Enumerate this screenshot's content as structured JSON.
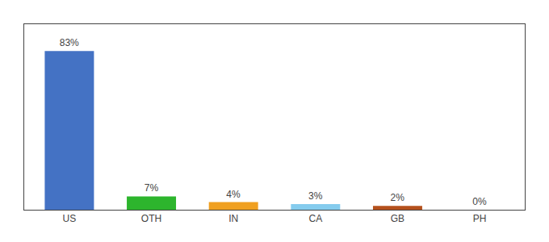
{
  "chart_data": {
    "type": "bar",
    "categories": [
      "US",
      "OTH",
      "IN",
      "CA",
      "GB",
      "PH"
    ],
    "values": [
      83,
      7,
      4,
      3,
      2,
      0
    ],
    "value_labels": [
      "83%",
      "7%",
      "4%",
      "3%",
      "2%",
      "0%"
    ],
    "colors": [
      "#4472c4",
      "#2db52d",
      "#f0a020",
      "#85ccee",
      "#b5511c",
      "#cccccc"
    ],
    "ylim": [
      0,
      97
    ],
    "data_labels": true,
    "tick_labels": "x",
    "grid": false
  }
}
